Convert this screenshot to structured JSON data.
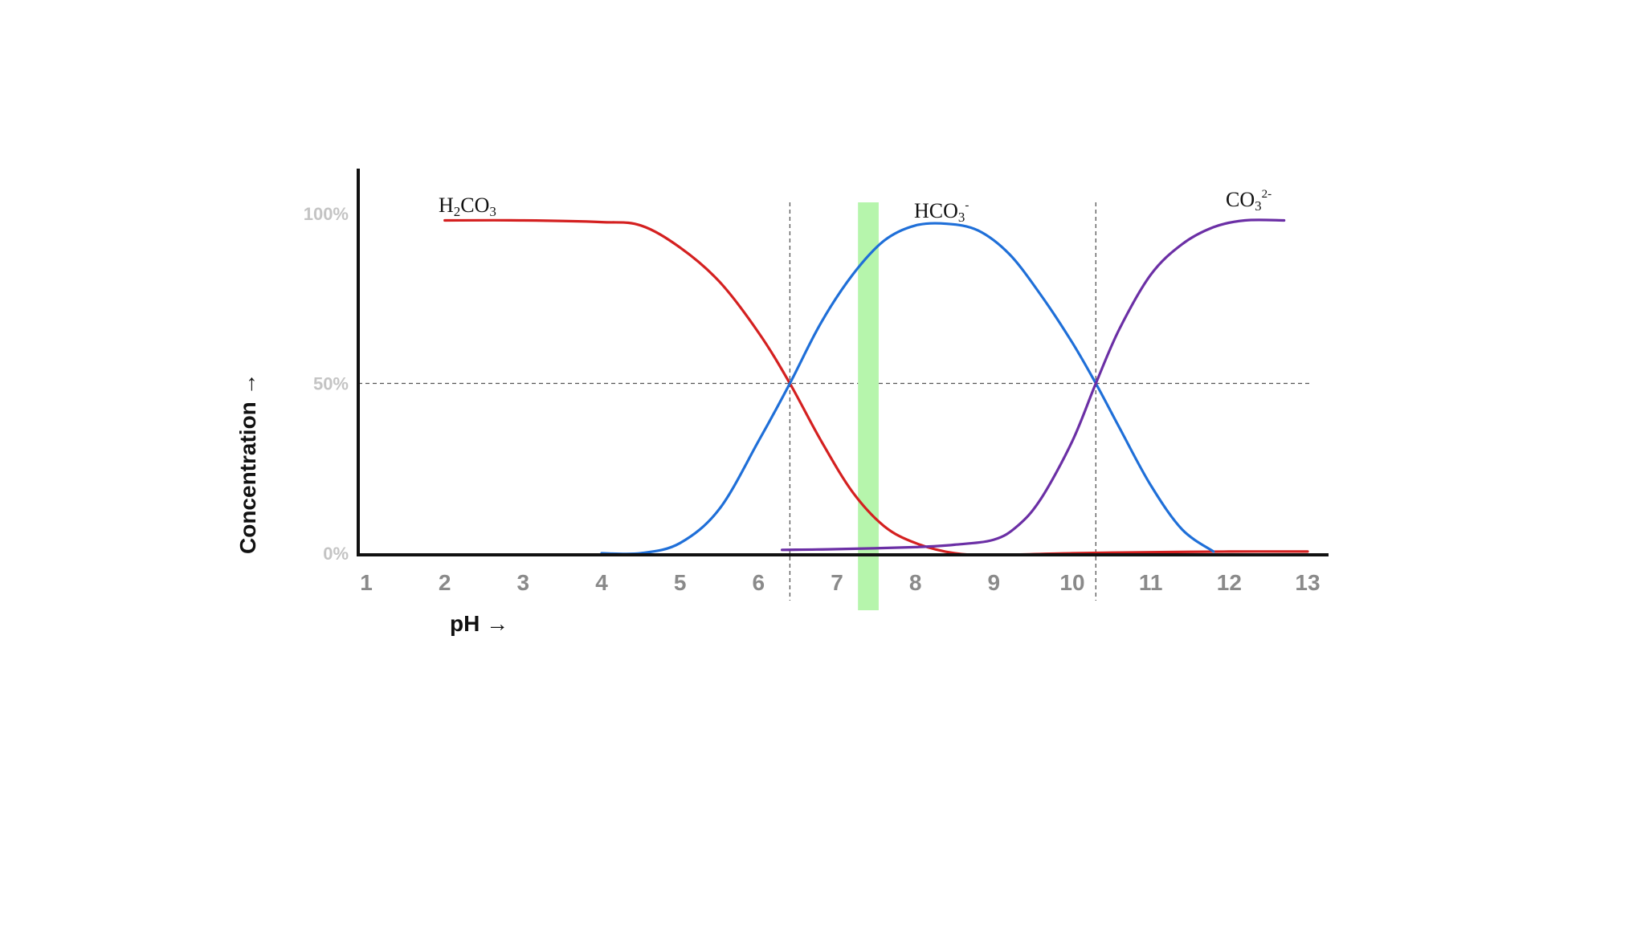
{
  "chart_data": {
    "type": "line",
    "xlabel": "pH →",
    "ylabel": "Concentration →",
    "xlim": [
      1,
      13
    ],
    "ylim": [
      0,
      100
    ],
    "x_ticks": [
      "1",
      "2",
      "3",
      "4",
      "5",
      "6",
      "7",
      "8",
      "9",
      "10",
      "11",
      "12",
      "13"
    ],
    "y_ticks": [
      {
        "value": 0,
        "label": "0%"
      },
      {
        "value": 50,
        "label": "50%"
      },
      {
        "value": 100,
        "label": "100%"
      }
    ],
    "reference_lines": [
      {
        "axis": "y",
        "value": 50,
        "style": "dashed"
      },
      {
        "axis": "x",
        "value": 6.4,
        "style": "dashed"
      },
      {
        "axis": "x",
        "value": 10.3,
        "style": "dashed"
      }
    ],
    "highlight_band": {
      "x_from": 7.35,
      "x_to": 7.45,
      "color": "#b6f5ac"
    },
    "series": [
      {
        "name_base": "H",
        "name_sub": "2",
        "name_rest": "CO",
        "name_sub2": "3",
        "name_sup": "",
        "color": "#d42020",
        "x": [
          2,
          3,
          4,
          4.5,
          5,
          5.5,
          6,
          6.4,
          6.8,
          7.2,
          7.6,
          8,
          8.5,
          9,
          10,
          11,
          12,
          13
        ],
        "y": [
          98,
          98,
          97.5,
          96.5,
          90,
          80,
          65,
          50,
          33,
          18,
          8,
          3,
          0,
          -0.5,
          0,
          0.3,
          0.5,
          0.5
        ]
      },
      {
        "name_base": "HCO",
        "name_sub": "3",
        "name_rest": "",
        "name_sub2": "",
        "name_sup": "-",
        "color": "#1f6fd8",
        "x": [
          4,
          4.5,
          5,
          5.5,
          6,
          6.4,
          6.8,
          7.2,
          7.6,
          8,
          8.4,
          8.8,
          9.2,
          9.6,
          10,
          10.3,
          10.6,
          11,
          11.4,
          11.8
        ],
        "y": [
          0,
          0,
          3,
          13,
          33,
          50,
          68,
          82,
          92,
          96.5,
          97,
          95,
          88,
          76,
          62,
          50,
          37,
          20,
          7,
          0.5
        ]
      },
      {
        "name_base": "CO",
        "name_sub": "3",
        "name_rest": "",
        "name_sub2": "",
        "name_sup": "2-",
        "color": "#6b2fa5",
        "x": [
          6.3,
          7,
          8,
          8.5,
          9,
          9.3,
          9.6,
          10,
          10.3,
          10.6,
          11,
          11.4,
          11.8,
          12.2,
          12.7
        ],
        "y": [
          1,
          1.2,
          1.8,
          2.5,
          4,
          8,
          16,
          33,
          50,
          66,
          82,
          91,
          96,
          98,
          98
        ]
      }
    ]
  }
}
